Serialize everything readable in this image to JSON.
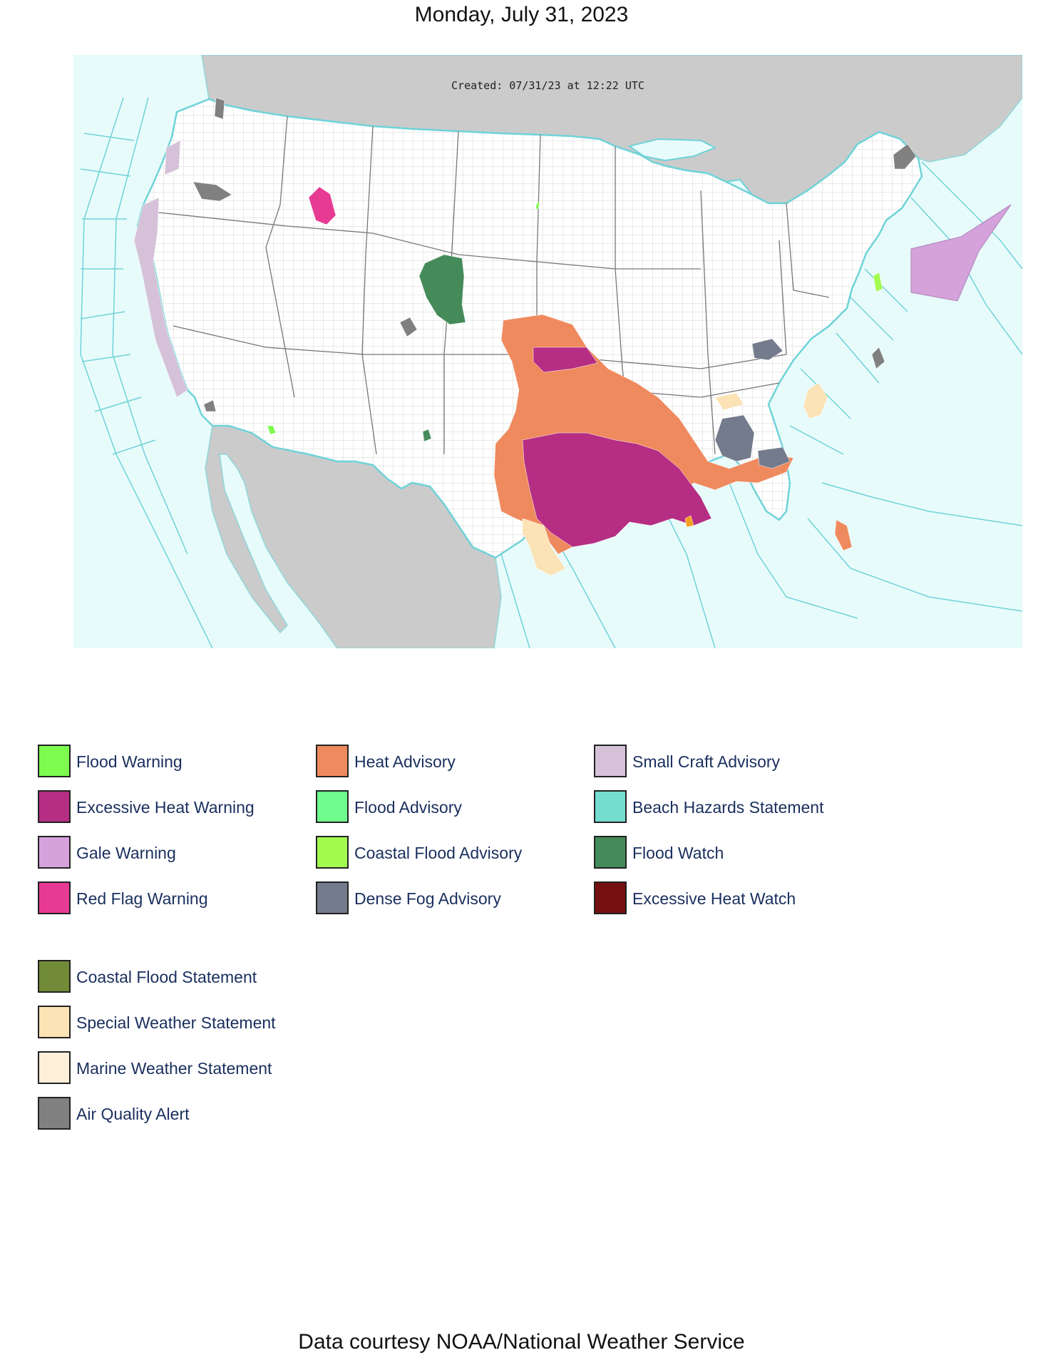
{
  "title": "Monday, July 31, 2023",
  "map": {
    "created_label": "Created: 07/31/23 at 12:22 UTC",
    "colors": {
      "ocean": "#e8fbfb",
      "land_us": "#ffffff",
      "land_foreign": "#cbcbcb",
      "marine_zone_lines": "#6fd3d8",
      "county_lines": "#bdbdbd"
    }
  },
  "legend": {
    "columns": [
      [
        {
          "label": "Flood Warning",
          "color": "#7dfc4f"
        },
        {
          "label": "Excessive Heat Warning",
          "color": "#b52e84"
        },
        {
          "label": "Gale Warning",
          "color": "#d5a2dc"
        },
        {
          "label": "Red Flag Warning",
          "color": "#e73a93"
        }
      ],
      [
        {
          "label": "Heat Advisory",
          "color": "#ef8a5e"
        },
        {
          "label": "Flood Advisory",
          "color": "#6ffd8e"
        },
        {
          "label": "Coastal Flood Advisory",
          "color": "#a3fb4f"
        },
        {
          "label": "Dense Fog Advisory",
          "color": "#737b8c"
        }
      ],
      [
        {
          "label": "Small Craft Advisory",
          "color": "#d5c2d9"
        },
        {
          "label": "Beach Hazards Statement",
          "color": "#74ddd0"
        },
        {
          "label": "Flood Watch",
          "color": "#458b5a"
        },
        {
          "label": "Excessive Heat Watch",
          "color": "#741110"
        }
      ]
    ],
    "extra": [
      {
        "label": "Coastal Flood Statement",
        "color": "#718b38"
      },
      {
        "label": "Special Weather Statement",
        "color": "#fbe3b5"
      },
      {
        "label": "Marine Weather Statement",
        "color": "#fdefd8"
      },
      {
        "label": "Air Quality Alert",
        "color": "#808080"
      }
    ]
  },
  "credit": "Data courtesy NOAA/National Weather Service"
}
